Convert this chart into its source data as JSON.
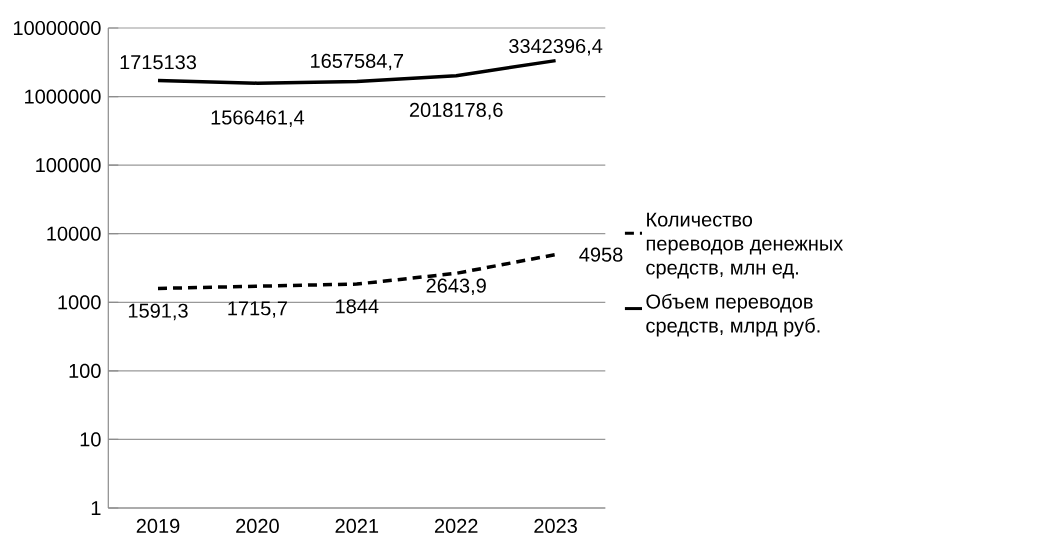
{
  "chart_data": {
    "type": "line",
    "categories": [
      "2019",
      "2020",
      "2021",
      "2022",
      "2023"
    ],
    "series": [
      {
        "name": "Количество переводов денежных средств, млн ед.",
        "color": "#000000",
        "line_style": "dashed",
        "values": [
          1591.3,
          1715.7,
          1844,
          2643.9,
          4958
        ],
        "value_labels": [
          "1591,3",
          "1715,7",
          "1844",
          "2643,9",
          "4958"
        ]
      },
      {
        "name": "Объем переводов средств, млрд руб.",
        "color": "#000000",
        "line_style": "solid",
        "values": [
          1715133,
          1566461.4,
          1657584.7,
          2018178.6,
          3342396.4
        ],
        "value_labels": [
          "1715133",
          "1566461,4",
          "1657584,7",
          "2018178,6",
          "3342396,4"
        ]
      }
    ],
    "log": "y",
    "ylim": [
      1,
      10000000
    ],
    "yticks": [
      1,
      10,
      100,
      1000,
      10000,
      100000,
      1000000,
      10000000
    ],
    "grid": "y",
    "legend": "right",
    "marker": "none"
  }
}
